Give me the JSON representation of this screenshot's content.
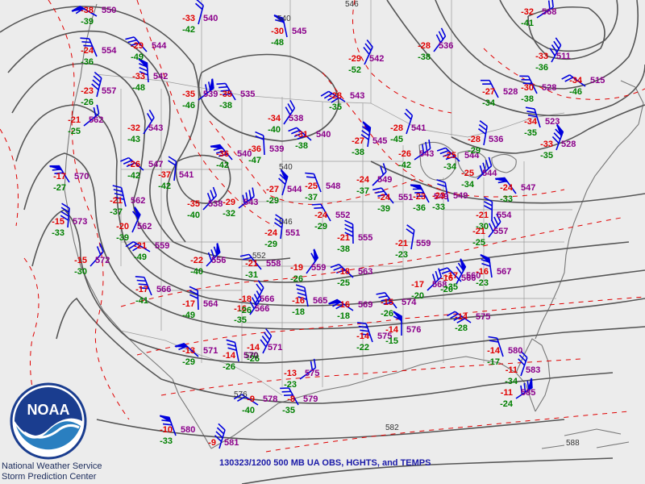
{
  "map": {
    "caption": "130323/1200 500 MB UA OBS, HGHTS, and TEMPS",
    "agency_logo_text": "NOAA",
    "org_line1": "National Weather Service",
    "org_line2": "Storm Prediction Center",
    "colors": {
      "height_contour": "#555555",
      "isotherm": "#e00000",
      "height_label": "#8b008b",
      "temp_label": "#e00000",
      "dewpoint_label": "#008000",
      "wind_barb": "#0000dd",
      "state_border": "#999999",
      "coast": "#666666",
      "logo_blue": "#1a3d8f",
      "caption": "#1a1aa8"
    },
    "contour_labels": [
      "540",
      "546",
      "540",
      "546",
      "552",
      "570",
      "576",
      "582",
      "588"
    ],
    "stations": [
      {
        "h": "550",
        "t": "-38",
        "d": "-39"
      },
      {
        "h": "554",
        "t": "-24",
        "d": "-36"
      },
      {
        "h": "557",
        "t": "-23",
        "d": "-26"
      },
      {
        "h": "562",
        "t": "-21",
        "d": "-25"
      },
      {
        "h": "570",
        "t": "-17",
        "d": "-27"
      },
      {
        "h": "573",
        "t": "-15",
        "d": "-33"
      },
      {
        "h": "572",
        "t": "-15",
        "d": "-30"
      },
      {
        "h": "544",
        "t": "-29",
        "d": "-49"
      },
      {
        "h": "542",
        "t": "-33",
        "d": "-48"
      },
      {
        "h": "543",
        "t": "-32",
        "d": "-43"
      },
      {
        "h": "547",
        "t": "-26",
        "d": "-42"
      },
      {
        "h": "562",
        "t": "-21",
        "d": "-37"
      },
      {
        "h": "562",
        "t": "-20",
        "d": "-39"
      },
      {
        "h": "559",
        "t": "-21",
        "d": "-49"
      },
      {
        "h": "566",
        "t": "-17",
        "d": "-41"
      },
      {
        "h": "540",
        "t": "-33",
        "d": "-42"
      },
      {
        "h": "539",
        "t": "-35",
        "d": "-46"
      },
      {
        "h": "535",
        "t": "-35",
        "d": "-38"
      },
      {
        "h": "541",
        "t": "-37",
        "d": "-42"
      },
      {
        "h": "538",
        "t": "-35",
        "d": "-40"
      },
      {
        "h": "540",
        "t": "-36",
        "d": "-42"
      },
      {
        "h": "539",
        "t": "-36",
        "d": "-47"
      },
      {
        "h": "538",
        "t": "-34",
        "d": "-40"
      },
      {
        "h": "540",
        "t": "-31",
        "d": "-38"
      },
      {
        "h": "545",
        "t": "-30",
        "d": "-48"
      },
      {
        "h": "542",
        "t": "-29",
        "d": "-52"
      },
      {
        "h": "543",
        "t": "-28",
        "d": "-35"
      },
      {
        "h": "548",
        "t": "-25",
        "d": "-37"
      },
      {
        "h": "544",
        "t": "-27",
        "d": "-29"
      },
      {
        "h": "543",
        "t": "-29",
        "d": "-32"
      },
      {
        "h": "552",
        "t": "-24",
        "d": "-29"
      },
      {
        "h": "551",
        "t": "-24",
        "d": "-29"
      },
      {
        "h": "556",
        "t": "-22",
        "d": "-40"
      },
      {
        "h": "558",
        "t": "-21",
        "d": "-31"
      },
      {
        "h": "564",
        "t": "-17",
        "d": "-49"
      },
      {
        "h": "566",
        "t": "-16",
        "d": "-35"
      },
      {
        "h": "571",
        "t": "-13",
        "d": "-29"
      },
      {
        "h": "570",
        "t": "-14",
        "d": "-26"
      },
      {
        "h": "571",
        "t": "-14",
        "d": "-26"
      },
      {
        "h": "578",
        "t": "-9",
        "d": "-40"
      },
      {
        "h": "580",
        "t": "-10",
        "d": "-33"
      },
      {
        "h": "581",
        "t": "-9",
        "d": ""
      },
      {
        "h": "575",
        "t": "-13",
        "d": "-23"
      },
      {
        "h": "579",
        "t": "-8",
        "d": "-35"
      },
      {
        "h": "545",
        "t": "-27",
        "d": "-38"
      },
      {
        "h": "549",
        "t": "-24",
        "d": "-37"
      },
      {
        "h": "551",
        "t": "-24",
        "d": "-39"
      },
      {
        "h": "555",
        "t": "-21",
        "d": "-38"
      },
      {
        "h": "559",
        "t": "-19",
        "d": "-26"
      },
      {
        "h": "563",
        "t": "-18",
        "d": "-25"
      },
      {
        "h": "565",
        "t": "-16",
        "d": "-18"
      },
      {
        "h": "566",
        "t": "-18",
        "d": "-26"
      },
      {
        "h": "569",
        "t": "-16",
        "d": "-18"
      },
      {
        "h": "575",
        "t": "-14",
        "d": "-22"
      },
      {
        "h": "541",
        "t": "-28",
        "d": "-45"
      },
      {
        "h": "543",
        "t": "-26",
        "d": "-42"
      },
      {
        "h": "549",
        "t": "-23",
        "d": "-36"
      },
      {
        "h": "559",
        "t": "-21",
        "d": "-23"
      },
      {
        "h": "568",
        "t": "-17",
        "d": "-20"
      },
      {
        "h": "574",
        "t": "-15",
        "d": "-26"
      },
      {
        "h": "576",
        "t": "-14",
        "d": "-15"
      },
      {
        "h": "536",
        "t": "-28",
        "d": "-38"
      },
      {
        "h": "544",
        "t": "-25",
        "d": "-34"
      },
      {
        "h": "549",
        "t": "-23",
        "d": "-33"
      },
      {
        "h": "566",
        "t": "-16",
        "d": "-20"
      },
      {
        "h": "575",
        "t": "-14",
        "d": "-28"
      },
      {
        "h": "580",
        "t": "-14",
        "d": "-17"
      },
      {
        "h": "583",
        "t": "-11",
        "d": "-34"
      },
      {
        "h": "585",
        "t": "-11",
        "d": "-24"
      },
      {
        "h": "528",
        "t": "-27",
        "d": "-34"
      },
      {
        "h": "536",
        "t": "-28",
        "d": "-29"
      },
      {
        "h": "544",
        "t": "-25",
        "d": "-34"
      },
      {
        "h": "547",
        "t": "-24",
        "d": "-33"
      },
      {
        "h": "554",
        "t": "-21",
        "d": "-30"
      },
      {
        "h": "557",
        "t": "-21",
        "d": "-25"
      },
      {
        "h": "560",
        "t": "-17",
        "d": "-35"
      },
      {
        "h": "567",
        "t": "-16",
        "d": "-23"
      },
      {
        "h": "511",
        "t": "-33",
        "d": "-36"
      },
      {
        "h": "515",
        "t": "-34",
        "d": "-46"
      },
      {
        "h": "523",
        "t": "-34",
        "d": "-35"
      },
      {
        "h": "528",
        "t": "-33",
        "d": "-35"
      },
      {
        "h": "568",
        "t": "-32",
        "d": "-41"
      },
      {
        "h": "528",
        "t": "-30",
        "d": "-38"
      }
    ]
  }
}
